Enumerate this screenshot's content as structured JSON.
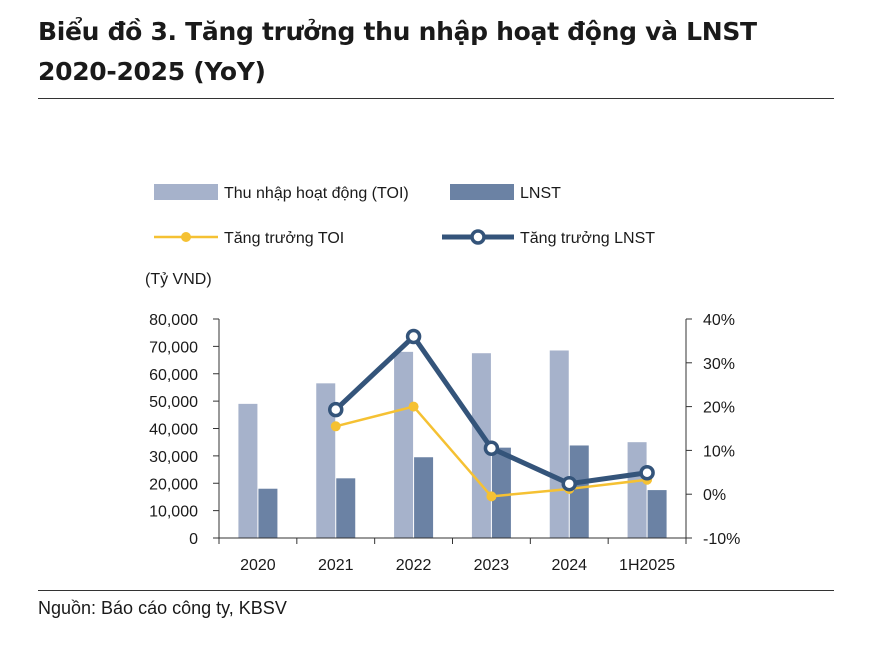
{
  "title": "Biểu đồ 3. Tăng trưởng thu nhập hoạt động và LNST 2020-2025 (YoY)",
  "source": "Nguồn: Báo cáo công ty, KBSV",
  "chart_data": {
    "type": "bar",
    "categories": [
      "2020",
      "2021",
      "2022",
      "2023",
      "2024",
      "1H2025"
    ],
    "left_axis": {
      "unit_label": "(Tỷ VND)",
      "ylim": [
        0,
        80000
      ],
      "ticks": [
        "0",
        "10,000",
        "20,000",
        "30,000",
        "40,000",
        "50,000",
        "60,000",
        "70,000",
        "80,000"
      ]
    },
    "right_axis": {
      "ylim": [
        -10,
        40
      ],
      "ticks": [
        "-10%",
        "0%",
        "10%",
        "20%",
        "30%",
        "40%"
      ]
    },
    "grid": false,
    "legend_placement": "top",
    "series": [
      {
        "name": "Thu nhập hoạt động (TOI)",
        "kind": "bar",
        "axis": "left",
        "color": "#a6b2cb",
        "values": [
          49000,
          56500,
          68000,
          67500,
          68500,
          35000
        ]
      },
      {
        "name": "LNST",
        "kind": "bar",
        "axis": "left",
        "color": "#6b82a4",
        "values": [
          18000,
          21800,
          29500,
          33000,
          33800,
          17500
        ]
      },
      {
        "name": "Tăng trưởng TOI",
        "kind": "line",
        "axis": "right",
        "color": "#f5c133",
        "values": [
          null,
          15.5,
          20.0,
          -0.5,
          1.2,
          3.3
        ]
      },
      {
        "name": "Tăng trưởng LNST",
        "kind": "line",
        "axis": "right",
        "color": "#34547a",
        "values": [
          null,
          19.3,
          36.0,
          10.5,
          2.4,
          4.9
        ]
      }
    ]
  }
}
